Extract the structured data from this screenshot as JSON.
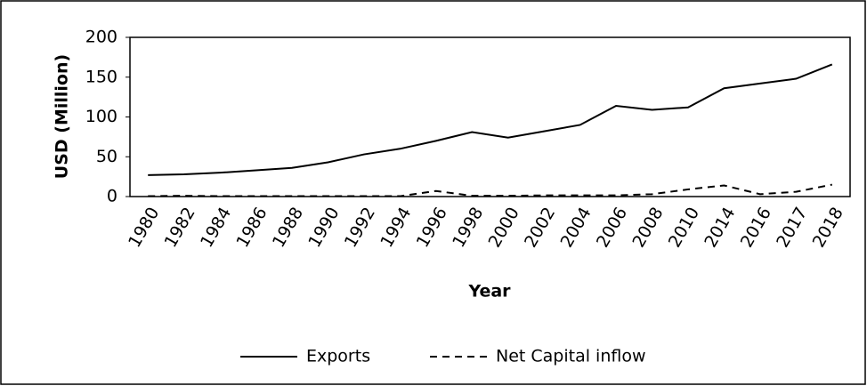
{
  "chart_data": {
    "type": "line",
    "x_label": "Year",
    "y_label": "USD (Million)",
    "categories": [
      "1980",
      "1982",
      "1984",
      "1986",
      "1988",
      "1990",
      "1992",
      "1994",
      "1996",
      "1998",
      "2000",
      "2002",
      "2004",
      "2006",
      "2008",
      "2010",
      "2014",
      "2016",
      "2017",
      "2018"
    ],
    "series": [
      {
        "name": "Exports",
        "color": "#000000",
        "line_style": "solid",
        "values": [
          27,
          28,
          30,
          33,
          36,
          43,
          53,
          60,
          70,
          81,
          74,
          82,
          90,
          114,
          109,
          112,
          136,
          142,
          148,
          166
        ]
      },
      {
        "name": "Net Capital inflow",
        "color": "#000000",
        "line_style": "dashed",
        "values": [
          0.5,
          1,
          0.5,
          0.5,
          0.5,
          0.5,
          0.5,
          0.5,
          7,
          1,
          1,
          1.5,
          1.5,
          1.5,
          3,
          9,
          14,
          3,
          6,
          15
        ]
      }
    ],
    "ylim": [
      0,
      200
    ],
    "yticks": [
      0,
      50,
      100,
      150,
      200
    ],
    "grid": false,
    "legend": "bottom"
  }
}
